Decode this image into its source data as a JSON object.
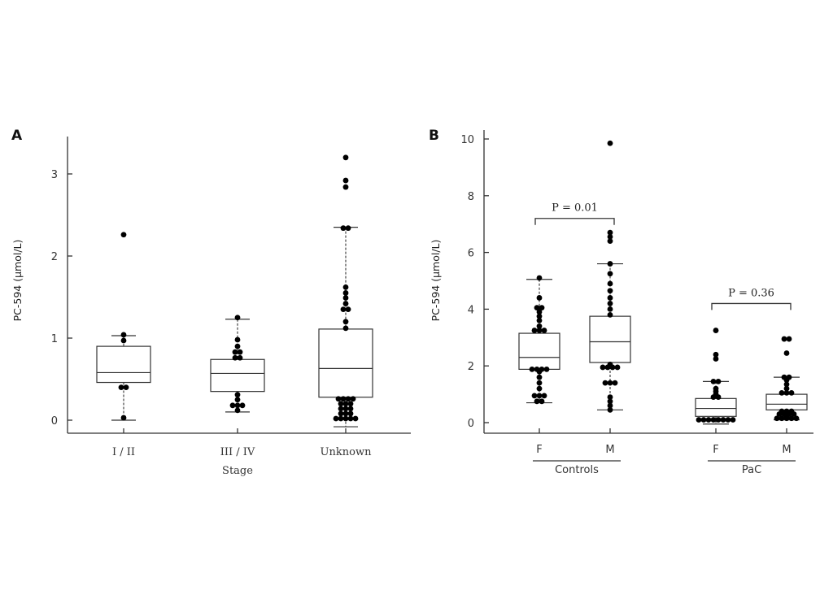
{
  "chart_data": [
    {
      "panel": "A",
      "type": "box",
      "xlabel": "Stage",
      "ylabel": "PC-594 (μmol/L)",
      "ylim": [
        -0.15,
        3.5
      ],
      "yticks": [
        0,
        1,
        2,
        3
      ],
      "categories": [
        "I / II",
        "III / IV",
        "Unknown"
      ],
      "boxes": [
        {
          "category": "I / II",
          "min": 0.0,
          "q1": 0.46,
          "median": 0.58,
          "q3": 0.9,
          "max": 1.03,
          "points": [
            0.03,
            0.4,
            0.4,
            0.97,
            1.04,
            2.26
          ]
        },
        {
          "category": "III / IV",
          "min": 0.1,
          "q1": 0.35,
          "median": 0.57,
          "q3": 0.74,
          "max": 1.23,
          "points": [
            0.12,
            0.18,
            0.18,
            0.18,
            0.25,
            0.31,
            0.76,
            0.76,
            0.83,
            0.83,
            0.9,
            0.98,
            1.25
          ]
        },
        {
          "category": "Unknown",
          "min": -0.08,
          "q1": 0.28,
          "median": 0.63,
          "q3": 1.11,
          "max": 2.35,
          "points": [
            0.02,
            0.02,
            0.02,
            0.02,
            0.02,
            0.08,
            0.08,
            0.08,
            0.14,
            0.14,
            0.14,
            0.2,
            0.2,
            0.2,
            0.26,
            0.26,
            0.26,
            0.26,
            1.12,
            1.2,
            1.35,
            1.35,
            1.42,
            1.49,
            1.55,
            1.62,
            2.34,
            2.34,
            2.84,
            2.92,
            3.2
          ]
        }
      ]
    },
    {
      "panel": "B",
      "type": "box",
      "xlabel": "",
      "ylabel": "PC-594 (μmol/L)",
      "ylim": [
        -0.3,
        10.5
      ],
      "yticks": [
        0,
        2,
        4,
        6,
        8,
        10
      ],
      "categories": [
        "F",
        "M",
        "F",
        "M"
      ],
      "groups": [
        {
          "label": "Controls",
          "categories": [
            "F",
            "M"
          ]
        },
        {
          "label": "PaC",
          "categories": [
            "F",
            "M"
          ]
        }
      ],
      "annotations": [
        {
          "text": "P = 0.01",
          "between": [
            "Controls F",
            "Controls M"
          ]
        },
        {
          "text": "P = 0.36",
          "between": [
            "PaC F",
            "PaC M"
          ]
        }
      ],
      "boxes": [
        {
          "category": "Controls F",
          "min": 0.7,
          "q1": 1.88,
          "median": 2.3,
          "q3": 3.15,
          "max": 5.05,
          "points": [
            0.75,
            0.75,
            0.95,
            0.95,
            0.95,
            1.2,
            1.4,
            1.6,
            1.8,
            1.88,
            1.88,
            1.88,
            1.88,
            3.25,
            3.25,
            3.25,
            3.4,
            3.6,
            3.75,
            3.9,
            4.05,
            4.05,
            4.4,
            5.1
          ]
        },
        {
          "category": "Controls M",
          "min": 0.45,
          "q1": 2.12,
          "median": 2.85,
          "q3": 3.75,
          "max": 5.6,
          "points": [
            0.45,
            0.6,
            0.75,
            0.9,
            1.4,
            1.4,
            1.4,
            1.95,
            1.95,
            1.95,
            1.95,
            2.05,
            3.8,
            4.0,
            4.2,
            4.4,
            4.65,
            4.9,
            5.25,
            5.6,
            6.4,
            6.55,
            6.7,
            9.85
          ]
        },
        {
          "category": "PaC F",
          "min": -0.05,
          "q1": 0.22,
          "median": 0.5,
          "q3": 0.85,
          "max": 1.45,
          "points": [
            0.1,
            0.1,
            0.1,
            0.1,
            0.1,
            0.1,
            0.1,
            0.1,
            0.9,
            0.9,
            1.0,
            1.1,
            1.2,
            1.45,
            1.45,
            2.25,
            2.4,
            3.25
          ]
        },
        {
          "category": "PaC M",
          "min": 0.1,
          "q1": 0.45,
          "median": 0.65,
          "q3": 1.0,
          "max": 1.6,
          "points": [
            0.15,
            0.15,
            0.15,
            0.15,
            0.15,
            0.2,
            0.3,
            0.3,
            0.3,
            0.3,
            0.4,
            0.4,
            0.4,
            1.05,
            1.05,
            1.05,
            1.2,
            1.35,
            1.5,
            1.6,
            1.6,
            2.45,
            2.95,
            2.95
          ]
        }
      ]
    }
  ],
  "labels": {
    "panel_a": "A",
    "panel_b": "B",
    "ylabel": "PC-594 (μmol/L)",
    "stage_title": "Stage",
    "controls": "Controls",
    "pac": "PaC",
    "p1": "P = 0.01",
    "p2": "P = 0.36"
  }
}
